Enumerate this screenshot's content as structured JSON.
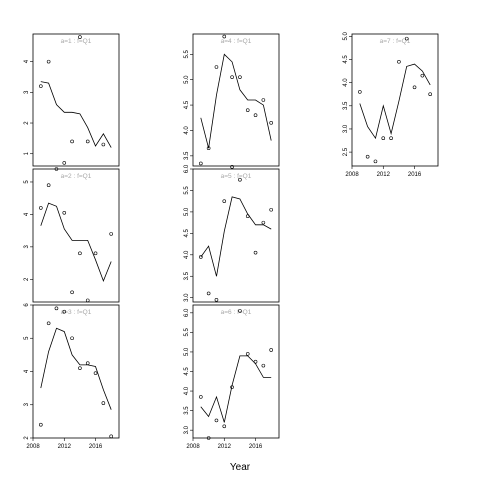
{
  "chart_data": {
    "type": "scatter",
    "xlabel": "Year",
    "ylabel": "",
    "x_ticks": [
      "2008",
      "2012",
      "2016"
    ],
    "overlay": "line",
    "panels": [
      {
        "label": "a=1 : f=Q1",
        "ylim": [
          0.6,
          4.9
        ],
        "y_ticks": [
          "1",
          "2",
          "3",
          "4"
        ],
        "points": [
          [
            2009,
            3.2
          ],
          [
            2010,
            4.0
          ],
          [
            2012,
            0.7
          ],
          [
            2013,
            1.4
          ],
          [
            2014,
            4.8
          ],
          [
            2015,
            1.4
          ],
          [
            2017,
            1.3
          ]
        ],
        "line": [
          [
            2009,
            3.35
          ],
          [
            2010,
            3.3
          ],
          [
            2011,
            2.6
          ],
          [
            2012,
            2.35
          ],
          [
            2013,
            2.35
          ],
          [
            2014,
            2.3
          ],
          [
            2015,
            1.85
          ],
          [
            2016,
            1.25
          ],
          [
            2017,
            1.65
          ],
          [
            2018,
            1.2
          ]
        ]
      },
      {
        "label": "a=2 : f=Q1",
        "ylim": [
          1.3,
          5.4
        ],
        "y_ticks": [
          "2",
          "3",
          "4",
          "5"
        ],
        "points": [
          [
            2009,
            4.2
          ],
          [
            2010,
            4.9
          ],
          [
            2011,
            5.4
          ],
          [
            2012,
            4.05
          ],
          [
            2013,
            1.6
          ],
          [
            2014,
            2.8
          ],
          [
            2015,
            1.35
          ],
          [
            2016,
            2.8
          ],
          [
            2018,
            3.4
          ]
        ],
        "line": [
          [
            2009,
            3.65
          ],
          [
            2010,
            4.35
          ],
          [
            2011,
            4.25
          ],
          [
            2012,
            3.55
          ],
          [
            2013,
            3.2
          ],
          [
            2014,
            3.2
          ],
          [
            2015,
            3.2
          ],
          [
            2016,
            2.6
          ],
          [
            2017,
            1.95
          ],
          [
            2018,
            2.55
          ]
        ]
      },
      {
        "label": "a=3 : f=Q1",
        "ylim": [
          2.0,
          6.0
        ],
        "y_ticks": [
          "2",
          "3",
          "4",
          "5",
          "6"
        ],
        "points": [
          [
            2009,
            2.4
          ],
          [
            2010,
            5.45
          ],
          [
            2011,
            5.9
          ],
          [
            2012,
            5.8
          ],
          [
            2013,
            5.0
          ],
          [
            2014,
            4.1
          ],
          [
            2015,
            4.25
          ],
          [
            2016,
            3.95
          ],
          [
            2017,
            3.05
          ],
          [
            2018,
            2.05
          ]
        ],
        "line": [
          [
            2009,
            3.5
          ],
          [
            2010,
            4.6
          ],
          [
            2011,
            5.3
          ],
          [
            2012,
            5.2
          ],
          [
            2013,
            4.5
          ],
          [
            2014,
            4.2
          ],
          [
            2015,
            4.2
          ],
          [
            2016,
            4.15
          ],
          [
            2017,
            3.45
          ],
          [
            2018,
            2.85
          ]
        ]
      },
      {
        "label": "a=4 : f=Q1",
        "ylim": [
          3.3,
          5.9
        ],
        "y_ticks": [
          "3.5",
          "4.0",
          "4.5",
          "5.0",
          "5.5"
        ],
        "points": [
          [
            2009,
            3.35
          ],
          [
            2010,
            3.65
          ],
          [
            2011,
            5.25
          ],
          [
            2012,
            5.85
          ],
          [
            2013,
            5.05
          ],
          [
            2014,
            5.05
          ],
          [
            2015,
            4.4
          ],
          [
            2016,
            4.3
          ],
          [
            2017,
            4.6
          ],
          [
            2018,
            4.15
          ]
        ],
        "line": [
          [
            2009,
            4.25
          ],
          [
            2010,
            3.65
          ],
          [
            2011,
            4.7
          ],
          [
            2012,
            5.5
          ],
          [
            2013,
            5.35
          ],
          [
            2014,
            4.8
          ],
          [
            2015,
            4.6
          ],
          [
            2016,
            4.6
          ],
          [
            2017,
            4.5
          ],
          [
            2018,
            3.8
          ]
        ]
      },
      {
        "label": "a=5 : f=Q1",
        "ylim": [
          2.9,
          6.0
        ],
        "y_ticks": [
          "3.0",
          "3.5",
          "4.0",
          "4.5",
          "5.0",
          "5.5",
          "6.0"
        ],
        "points": [
          [
            2009,
            3.95
          ],
          [
            2010,
            3.1
          ],
          [
            2011,
            2.95
          ],
          [
            2012,
            5.25
          ],
          [
            2013,
            6.05
          ],
          [
            2014,
            5.75
          ],
          [
            2015,
            4.9
          ],
          [
            2016,
            4.05
          ],
          [
            2017,
            4.75
          ],
          [
            2018,
            5.05
          ]
        ],
        "line": [
          [
            2009,
            3.95
          ],
          [
            2010,
            4.2
          ],
          [
            2011,
            3.5
          ],
          [
            2012,
            4.55
          ],
          [
            2013,
            5.35
          ],
          [
            2014,
            5.3
          ],
          [
            2015,
            4.95
          ],
          [
            2016,
            4.7
          ],
          [
            2017,
            4.7
          ],
          [
            2018,
            4.6
          ]
        ]
      },
      {
        "label": "a=6 : f=Q1",
        "ylim": [
          2.8,
          6.2
        ],
        "y_ticks": [
          "3.0",
          "3.5",
          "4.0",
          "4.5",
          "5.0",
          "5.5",
          "6.0"
        ],
        "points": [
          [
            2009,
            3.85
          ],
          [
            2010,
            2.8
          ],
          [
            2011,
            3.25
          ],
          [
            2012,
            3.1
          ],
          [
            2013,
            4.1
          ],
          [
            2014,
            6.05
          ],
          [
            2015,
            4.95
          ],
          [
            2016,
            4.75
          ],
          [
            2017,
            4.65
          ],
          [
            2018,
            5.05
          ]
        ],
        "line": [
          [
            2009,
            3.6
          ],
          [
            2010,
            3.35
          ],
          [
            2011,
            3.85
          ],
          [
            2012,
            3.2
          ],
          [
            2013,
            4.15
          ],
          [
            2014,
            4.9
          ],
          [
            2015,
            4.9
          ],
          [
            2016,
            4.7
          ],
          [
            2017,
            4.35
          ],
          [
            2018,
            4.35
          ]
        ]
      },
      {
        "label": "a=7 : f=Q1",
        "ylim": [
          2.2,
          5.05
        ],
        "y_ticks": [
          "2.5",
          "3.0",
          "3.5",
          "4.0",
          "4.5",
          "5.0"
        ],
        "points": [
          [
            2009,
            3.8
          ],
          [
            2010,
            2.4
          ],
          [
            2011,
            2.3
          ],
          [
            2012,
            2.8
          ],
          [
            2013,
            2.8
          ],
          [
            2014,
            4.45
          ],
          [
            2015,
            4.95
          ],
          [
            2016,
            3.9
          ],
          [
            2017,
            4.15
          ],
          [
            2018,
            3.75
          ]
        ],
        "line": [
          [
            2009,
            3.55
          ],
          [
            2010,
            3.05
          ],
          [
            2011,
            2.8
          ],
          [
            2012,
            3.5
          ],
          [
            2013,
            2.9
          ],
          [
            2014,
            3.6
          ],
          [
            2015,
            4.35
          ],
          [
            2016,
            4.4
          ],
          [
            2017,
            4.25
          ],
          [
            2018,
            3.95
          ]
        ]
      }
    ]
  }
}
